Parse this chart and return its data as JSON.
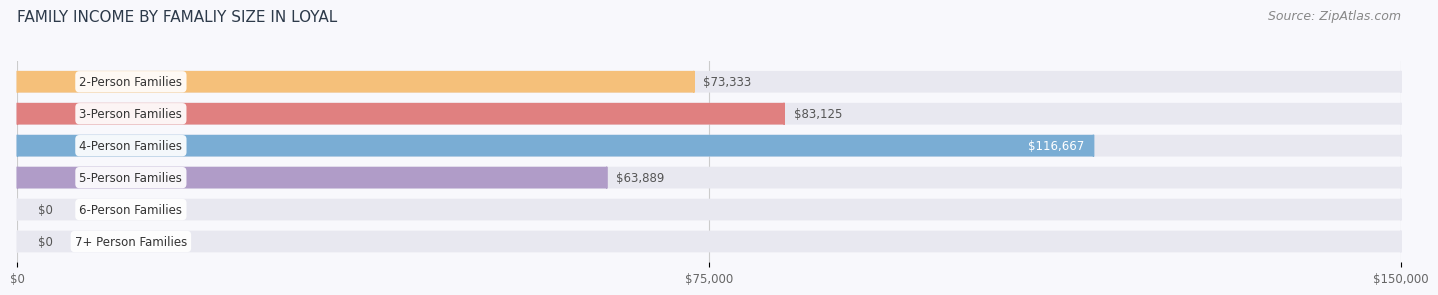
{
  "title": "FAMILY INCOME BY FAMALIY SIZE IN LOYAL",
  "source": "Source: ZipAtlas.com",
  "categories": [
    "2-Person Families",
    "3-Person Families",
    "4-Person Families",
    "5-Person Families",
    "6-Person Families",
    "7+ Person Families"
  ],
  "values": [
    73333,
    83125,
    116667,
    63889,
    0,
    0
  ],
  "labels": [
    "$73,333",
    "$83,125",
    "$116,667",
    "$63,889",
    "$0",
    "$0"
  ],
  "bar_colors": [
    "#f5c07a",
    "#e08080",
    "#7aadd4",
    "#b09cc8",
    "#6ecdc8",
    "#b0b8e0"
  ],
  "label_colors": [
    "#555555",
    "#555555",
    "#ffffff",
    "#555555",
    "#555555",
    "#555555"
  ],
  "xmax": 150000,
  "xticks": [
    0,
    75000,
    150000
  ],
  "xticklabels": [
    "$0",
    "$75,000",
    "$150,000"
  ],
  "bar_bg_color": "#e8e8f0",
  "title_fontsize": 11,
  "source_fontsize": 9,
  "label_fontsize": 8.5,
  "category_fontsize": 8.5,
  "bar_height": 0.68,
  "figsize": [
    14.06,
    3.05
  ]
}
